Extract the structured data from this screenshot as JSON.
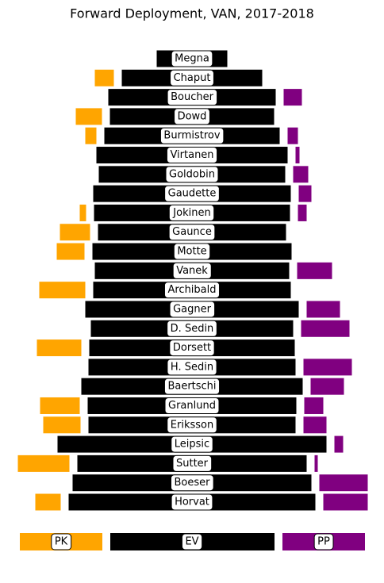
{
  "chart_data": {
    "type": "bar",
    "title": "Forward Deployment, VAN, 2017-2018",
    "categories": [
      "Megna",
      "Chaput",
      "Boucher",
      "Dowd",
      "Burmistrov",
      "Virtanen",
      "Goldobin",
      "Gaudette",
      "Jokinen",
      "Gaunce",
      "Motte",
      "Vanek",
      "Archibald",
      "Gagner",
      "D. Sedin",
      "Dorsett",
      "H. Sedin",
      "Baertschi",
      "Granlund",
      "Eriksson",
      "Leipsic",
      "Sutter",
      "Boeser",
      "Horvat"
    ],
    "series": [
      {
        "name": "PK",
        "color": "orange",
        "values": [
          0,
          24,
          0,
          33,
          14,
          0,
          0,
          0,
          8,
          38,
          35,
          0,
          58,
          0,
          0,
          56,
          0,
          0,
          50,
          47,
          0,
          65,
          0,
          32
        ]
      },
      {
        "name": "EV",
        "color": "black",
        "values": [
          89,
          177,
          211,
          207,
          221,
          241,
          235,
          249,
          247,
          237,
          251,
          245,
          249,
          269,
          255,
          259,
          261,
          279,
          263,
          261,
          339,
          289,
          301,
          311
        ]
      },
      {
        "name": "PP",
        "color": "purple",
        "values": [
          0,
          0,
          23,
          0,
          13,
          5,
          19,
          16,
          11,
          0,
          0,
          44,
          0,
          42,
          61,
          0,
          61,
          42,
          24,
          29,
          11,
          4,
          61,
          56
        ]
      }
    ]
  }
}
